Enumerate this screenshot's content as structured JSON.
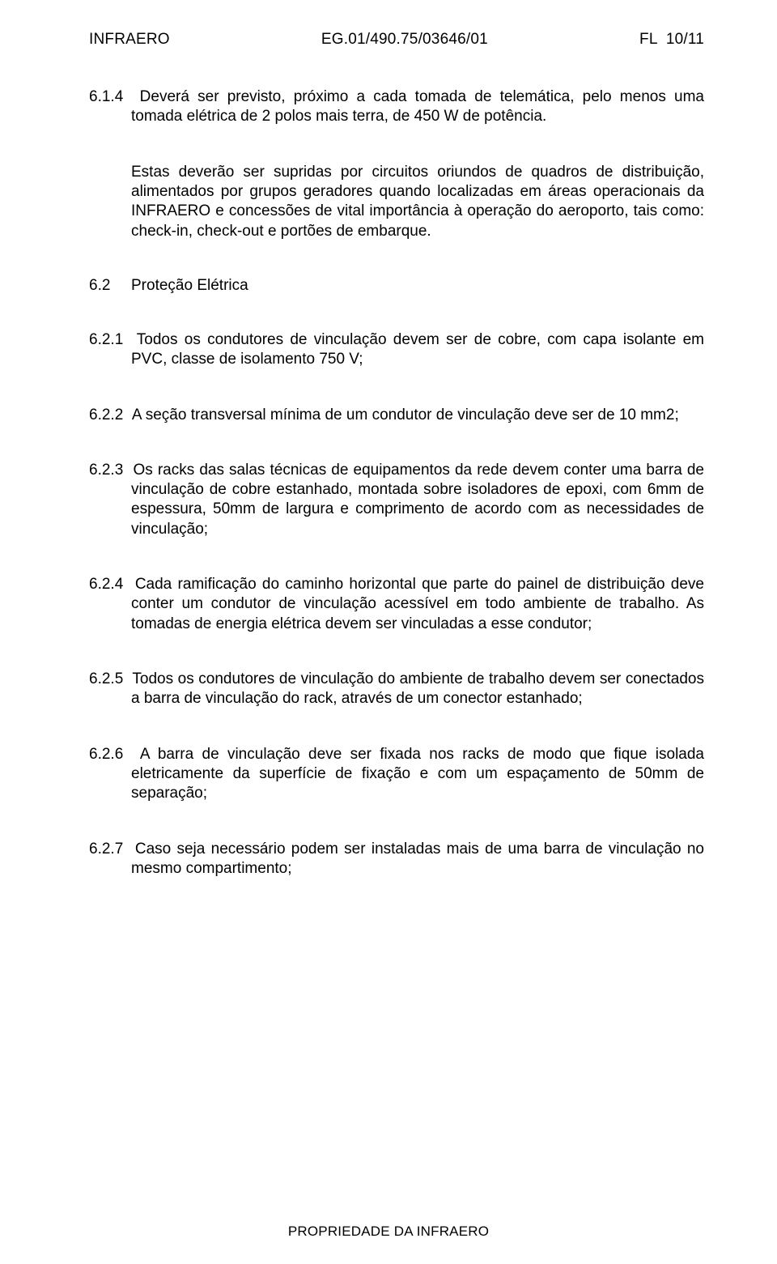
{
  "header": {
    "left": "INFRAERO",
    "center": "EG.01/490.75/03646/01",
    "right": "FL  10/11"
  },
  "paragraphs": {
    "p614": {
      "num": "6.1.4",
      "text": "Deverá ser previsto, próximo a cada tomada de telemática, pelo menos uma tomada elétrica de 2 polos mais terra, de 450 W de potência."
    },
    "p614_cont": "Estas deverão ser supridas por circuitos oriundos de quadros de distribuição, alimentados por grupos geradores quando localizadas em áreas operacionais da INFRAERO e concessões de vital importância à operação do aeroporto, tais como: check-in, check-out e portões de embarque.",
    "s62": {
      "num": "6.2",
      "title": "Proteção Elétrica"
    },
    "p621": {
      "num": "6.2.1",
      "text": "Todos os condutores de vinculação devem ser de cobre, com capa isolante em PVC, classe de isolamento 750 V;"
    },
    "p622": {
      "num": "6.2.2",
      "text": "A seção transversal mínima de um condutor de vinculação deve ser de 10 mm2;"
    },
    "p623": {
      "num": "6.2.3",
      "text": "Os racks das salas técnicas de equipamentos da rede devem conter uma barra de vinculação de cobre estanhado, montada sobre isoladores de epoxi, com 6mm de espessura, 50mm de largura e comprimento de acordo com as necessidades de vinculação;"
    },
    "p624": {
      "num": "6.2.4",
      "text": "Cada ramificação do caminho horizontal que parte do painel de distribuição deve conter um condutor de vinculação acessível em todo ambiente de trabalho. As tomadas de energia elétrica devem ser vinculadas a esse condutor;"
    },
    "p625": {
      "num": "6.2.5",
      "text": "Todos os condutores de vinculação do ambiente de trabalho devem ser conectados a barra de vinculação do rack, através de um conector estanhado;"
    },
    "p626": {
      "num": "6.2.6",
      "text": "A barra de vinculação deve ser fixada nos racks de modo que fique isolada eletricamente da superfície de fixação e com um espaçamento de 50mm de separação;"
    },
    "p627": {
      "num": "6.2.7",
      "text": "Caso seja necessário podem ser instaladas mais de uma barra de vinculação no mesmo compartimento;"
    }
  },
  "footer": "PROPRIEDADE DA INFRAERO"
}
